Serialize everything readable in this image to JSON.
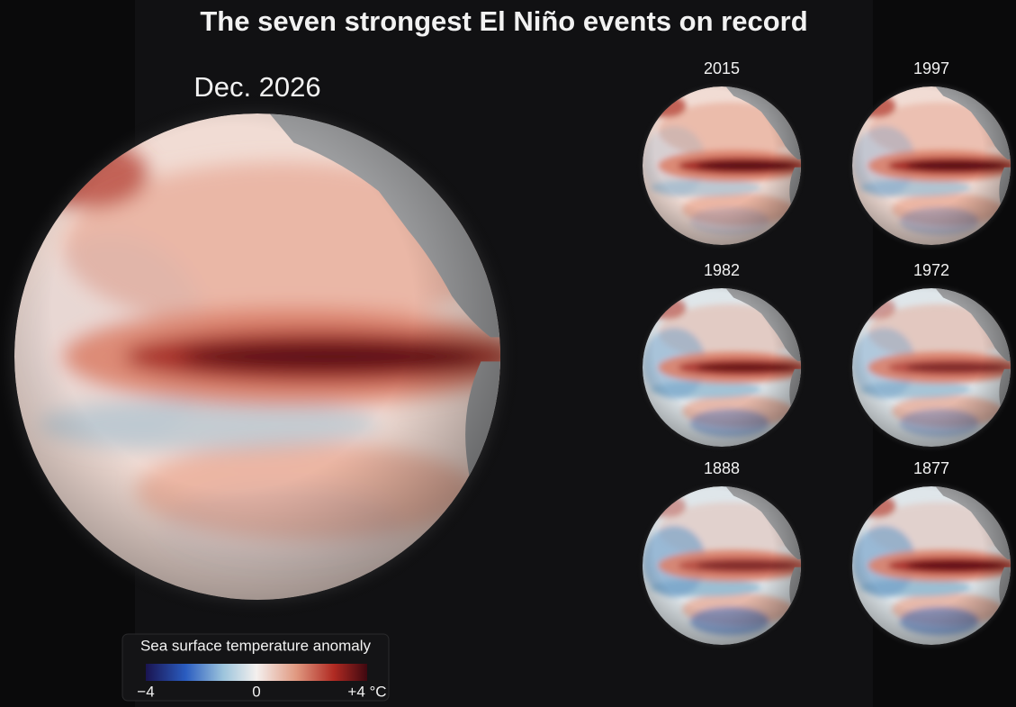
{
  "title": "The seven strongest El Niño events on record",
  "main_globe": {
    "label": "Dec. 2026"
  },
  "small_globes": [
    {
      "label": "2015"
    },
    {
      "label": "1997"
    },
    {
      "label": "1982"
    },
    {
      "label": "1972"
    },
    {
      "label": "1888"
    },
    {
      "label": "1877"
    }
  ],
  "legend": {
    "title": "Sea surface temperature anomaly",
    "ticks": [
      "−4",
      "0",
      "+4 °C"
    ]
  }
}
